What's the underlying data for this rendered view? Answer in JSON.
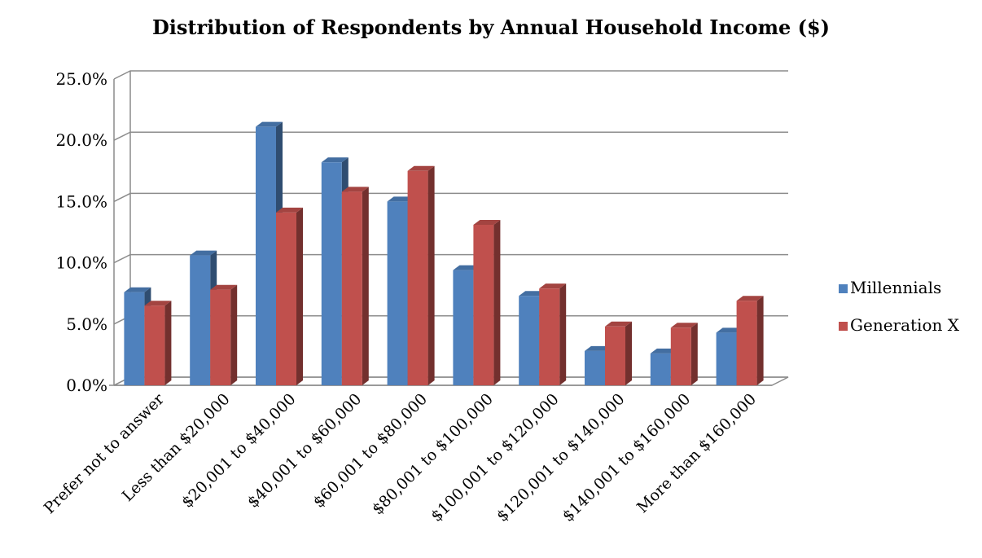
{
  "chart_data": {
    "type": "bar",
    "title": "Distribution of Respondents by Annual Household Income ($)",
    "xlabel": "",
    "ylabel": "",
    "ylim": [
      0,
      25
    ],
    "y_ticks": [
      "0.0%",
      "5.0%",
      "10.0%",
      "15.0%",
      "20.0%",
      "25.0%"
    ],
    "grid": true,
    "legend_position": "right",
    "categories": [
      "Prefer not to answer",
      "Less than $20,000",
      "$20,001 to $40,000",
      "$40,001 to $60,000",
      "$60,001 to $80,000",
      "$80,001 to $100,000",
      "$100,001 to $120,000",
      "$120,001 to $140,000",
      "$140,001 to $160,000",
      "More than $160,000"
    ],
    "series": [
      {
        "name": "Millennials",
        "color": "#4F81BD",
        "values": [
          7.6,
          10.6,
          21.1,
          18.2,
          15.0,
          9.4,
          7.3,
          2.8,
          2.6,
          4.3
        ]
      },
      {
        "name": "Generation X",
        "color": "#C0504D",
        "values": [
          6.5,
          7.8,
          14.1,
          15.8,
          17.5,
          13.1,
          7.9,
          4.8,
          4.7,
          6.9
        ]
      }
    ]
  }
}
